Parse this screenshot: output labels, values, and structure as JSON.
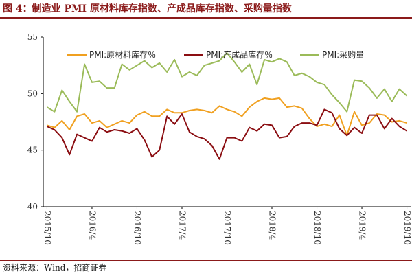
{
  "title": "图 4：制造业 PMI 原材料库存指数、产成品库存指数、采购量指数",
  "source": "资料来源：Wind，招商证券",
  "colors": {
    "title": "#8b1a1a",
    "raw": "#f0a020",
    "finished": "#8b0e12",
    "purchase": "#9bbb59"
  },
  "chart_data": {
    "type": "line",
    "title": "图 4：制造业 PMI 原材料库存指数、产成品库存指数、采购量指数",
    "ylim": [
      40,
      55
    ],
    "yticks": [
      40,
      45,
      50,
      55
    ],
    "xticklabels": [
      "2015/10",
      "2016/4",
      "2016/10",
      "2017/4",
      "2017/10",
      "2018/4",
      "2018/10",
      "2019/4",
      "2019/10"
    ],
    "x": [
      "2015/10",
      "2015/11",
      "2015/12",
      "2016/1",
      "2016/2",
      "2016/3",
      "2016/4",
      "2016/5",
      "2016/6",
      "2016/7",
      "2016/8",
      "2016/9",
      "2016/10",
      "2016/11",
      "2016/12",
      "2017/1",
      "2017/2",
      "2017/3",
      "2017/4",
      "2017/5",
      "2017/6",
      "2017/7",
      "2017/8",
      "2017/9",
      "2017/10",
      "2017/11",
      "2017/12",
      "2018/1",
      "2018/2",
      "2018/3",
      "2018/4",
      "2018/5",
      "2018/6",
      "2018/7",
      "2018/8",
      "2018/9",
      "2018/10",
      "2018/11",
      "2018/12",
      "2019/1",
      "2019/2",
      "2019/3",
      "2019/4",
      "2019/5",
      "2019/6",
      "2019/7",
      "2019/8",
      "2019/9",
      "2019/10"
    ],
    "legend_position": "top",
    "grid": false,
    "series": [
      {
        "name": "PMI:原材料库存％",
        "color": "#f0a020",
        "values": [
          47.2,
          47.0,
          47.6,
          46.8,
          48.0,
          48.2,
          47.4,
          47.6,
          47.0,
          47.3,
          47.6,
          47.4,
          48.1,
          48.4,
          48.0,
          48.0,
          48.6,
          48.3,
          48.3,
          48.5,
          48.6,
          48.5,
          48.3,
          48.9,
          48.6,
          48.4,
          48.0,
          48.8,
          49.3,
          49.6,
          49.5,
          49.6,
          48.8,
          48.9,
          48.7,
          47.8,
          47.1,
          47.3,
          47.1,
          48.1,
          46.3,
          48.4,
          47.2,
          47.4,
          48.2,
          48.1,
          47.5,
          47.6,
          47.4
        ]
      },
      {
        "name": "PMI:产成品库存％",
        "color": "#8b0e12",
        "values": [
          47.1,
          46.8,
          46.1,
          44.6,
          46.4,
          46.1,
          45.8,
          47.0,
          46.6,
          46.8,
          46.7,
          46.5,
          46.9,
          45.9,
          44.4,
          45.0,
          48.0,
          47.3,
          48.2,
          46.6,
          46.2,
          46.0,
          45.4,
          44.2,
          46.1,
          46.1,
          45.8,
          47.0,
          46.7,
          47.3,
          47.2,
          46.1,
          46.2,
          47.1,
          47.4,
          47.4,
          47.2,
          48.6,
          48.3,
          46.9,
          46.3,
          47.0,
          46.5,
          48.1,
          48.1,
          46.9,
          47.8,
          47.1,
          46.7
        ]
      },
      {
        "name": "PMI:采购量",
        "color": "#9bbb59",
        "values": [
          48.8,
          48.4,
          50.3,
          49.3,
          48.4,
          52.6,
          51.0,
          51.1,
          50.5,
          50.5,
          52.6,
          52.1,
          52.5,
          52.9,
          52.3,
          52.7,
          51.9,
          53.0,
          51.5,
          51.9,
          51.6,
          52.5,
          52.7,
          52.9,
          53.6,
          52.8,
          51.9,
          52.6,
          50.8,
          53.0,
          52.8,
          53.1,
          52.8,
          51.6,
          51.8,
          51.5,
          51.0,
          50.8,
          49.9,
          49.2,
          48.4,
          51.2,
          51.1,
          50.5,
          49.6,
          50.4,
          49.3,
          50.4,
          49.8
        ]
      }
    ]
  }
}
